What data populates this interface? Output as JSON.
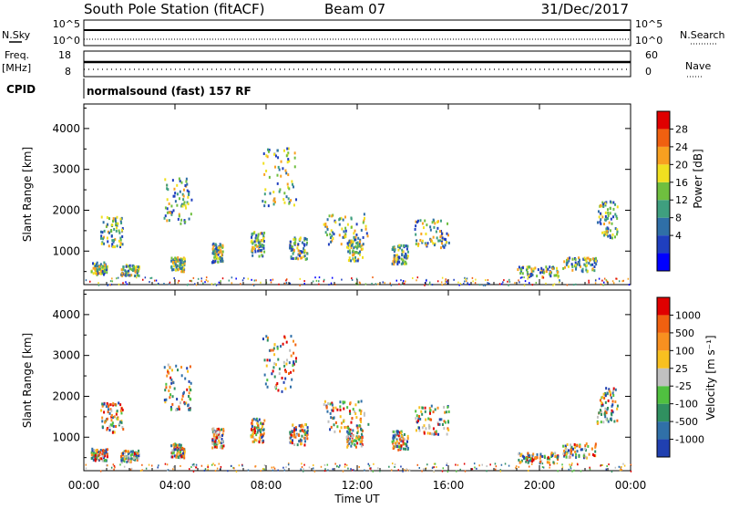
{
  "header": {
    "station": "South Pole Station (fitACF)",
    "beam": "Beam 07",
    "date": "31/Dec/2017"
  },
  "side_labels": {
    "nsky": "N.Sky",
    "freq_line1": "Freq.",
    "freq_line2": "[MHz]",
    "cpid": "CPID",
    "nsearch": "N.Search",
    "nave": "Nave"
  },
  "cpid_text": "normalsound (fast) 157 RF",
  "chart_data": [
    {
      "name": "noise",
      "type": "line",
      "left_ticks": [
        "10^5",
        "10^0"
      ],
      "right_ticks": [
        "10^5",
        "10^0"
      ],
      "note_series": [
        "N.Sky",
        "N.Search"
      ]
    },
    {
      "name": "frequency",
      "type": "line",
      "left_ticks": [
        "18",
        "8"
      ],
      "right_ticks": [
        "60",
        "0"
      ],
      "note_series": [
        "Freq.",
        "Nave"
      ]
    },
    {
      "name": "power",
      "type": "heatmap",
      "ylabel": "Slant Range [km]",
      "yticks": [
        1000,
        2000,
        3000,
        4000
      ],
      "ylim": [
        180,
        4600
      ],
      "xlim": [
        0,
        24
      ],
      "colorbar": {
        "label": "Power [dB]",
        "ticks": [
          "28",
          "24",
          "20",
          "16",
          "12",
          "8",
          "4"
        ],
        "colors": [
          "#0000ff",
          "#1f3fbf",
          "#2f6fa7",
          "#3f9f7f",
          "#6fbf3f",
          "#f0e020",
          "#f8a020",
          "#f06010",
          "#e00000"
        ]
      }
    },
    {
      "name": "velocity",
      "type": "heatmap",
      "ylabel": "Slant Range [km]",
      "yticks": [
        1000,
        2000,
        3000,
        4000
      ],
      "ylim": [
        180,
        4600
      ],
      "xlim": [
        0,
        24
      ],
      "colorbar": {
        "label": "Velocity [m s⁻¹]",
        "ticks": [
          "1000",
          "500",
          "100",
          "25",
          "-25",
          "-100",
          "-500",
          "-1000"
        ],
        "colors": [
          "#2040b0",
          "#3070a8",
          "#309060",
          "#50c040",
          "#c0c0c0",
          "#f8c020",
          "#f89020",
          "#f06010",
          "#e00000"
        ]
      }
    }
  ],
  "x_axis": {
    "ticks": [
      "00:00",
      "04:00",
      "08:00",
      "12:00",
      "16:00",
      "20:00",
      "00:00"
    ],
    "label": "Time UT"
  }
}
